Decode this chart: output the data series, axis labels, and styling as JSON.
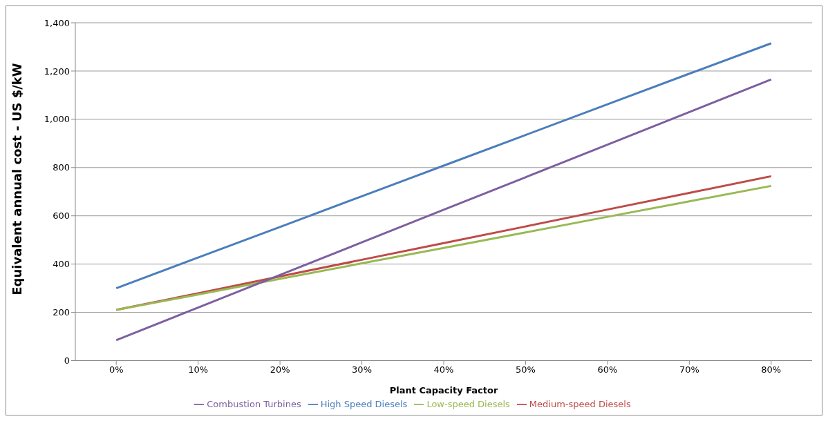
{
  "chart_data": {
    "type": "line",
    "xlabel": "Plant Capacity Factor",
    "ylabel": "Equivalent annual cost - US $/kW",
    "categories": [
      "0%",
      "10%",
      "20%",
      "30%",
      "40%",
      "50%",
      "60%",
      "70%",
      "80%"
    ],
    "series": [
      {
        "name": "High Speed Diesels",
        "color": "#4a7ebb",
        "values": [
          300,
          427,
          554,
          681,
          808,
          935,
          1062,
          1189,
          1315
        ]
      },
      {
        "name": "Medium-speed Diesels",
        "color": "#be4b48",
        "values": [
          210,
          279,
          349,
          418,
          487,
          556,
          626,
          695,
          764
        ]
      },
      {
        "name": "Low-speed Diesels",
        "color": "#98b954",
        "values": [
          210,
          274,
          339,
          403,
          467,
          531,
          596,
          660,
          724
        ]
      },
      {
        "name": "Combustion Turbines",
        "color": "#7d5fa0",
        "values": [
          85,
          220,
          355,
          490,
          625,
          760,
          895,
          1030,
          1165
        ]
      }
    ],
    "ylim": [
      0,
      1400
    ],
    "yticks": [
      {
        "value": 0,
        "label": "0"
      },
      {
        "value": 200,
        "label": "200"
      },
      {
        "value": 400,
        "label": "400"
      },
      {
        "value": 600,
        "label": "600"
      },
      {
        "value": 800,
        "label": "800"
      },
      {
        "value": 1000,
        "label": "1,000"
      },
      {
        "value": 1200,
        "label": "1,200"
      },
      {
        "value": 1400,
        "label": "1,400"
      }
    ],
    "grid": "y",
    "legend": "bottom",
    "marker": "none",
    "line_style": "solid"
  }
}
